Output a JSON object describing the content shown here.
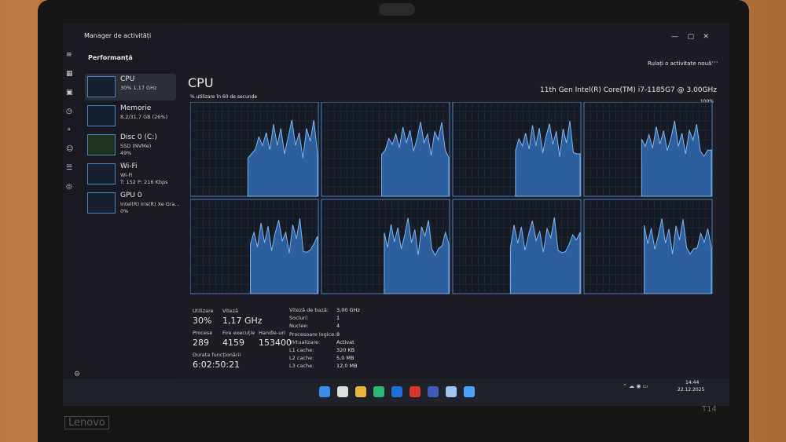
{
  "window": {
    "title": "Manager de activități"
  },
  "header": {
    "title": "Performanță",
    "run_task": "Rulați o activitate nouă"
  },
  "sidebar": [
    {
      "name": "CPU",
      "lines": [
        "30%  1,17 GHz"
      ]
    },
    {
      "name": "Memorie",
      "lines": [
        "8,2/31,7 GB (26%)"
      ]
    },
    {
      "name": "Disc 0 (C:)",
      "lines": [
        "SSD (NVMe)",
        "49%"
      ]
    },
    {
      "name": "Wi-Fi",
      "lines": [
        "Wi-Fi",
        "T: 152  P: 216 Kbps"
      ]
    },
    {
      "name": "GPU 0",
      "lines": [
        "Intel(R) Iris(R) Xe Gra...",
        "0%"
      ]
    }
  ],
  "cpu": {
    "title": "CPU",
    "model": "11th Gen Intel(R) Core(TM) i7-1185G7 @ 3.00GHz",
    "graph_label": "% utilizare în 60 de secunde",
    "graph_max": "100%"
  },
  "stats": [
    {
      "label": "Utilizare",
      "value": "30%"
    },
    {
      "label": "Viteză",
      "value": "1,17 GHz"
    },
    {
      "label": "Procese",
      "value": "289"
    },
    {
      "label": "Fire execuție",
      "value": "4159"
    },
    {
      "label": "Handle-uri",
      "value": "153400"
    },
    {
      "label": "Durata funcționării",
      "value": "6:02:50:21"
    }
  ],
  "details": [
    {
      "label": "Viteză de bază:",
      "value": "3,00 GHz"
    },
    {
      "label": "Socluri:",
      "value": "1"
    },
    {
      "label": "Nuclee:",
      "value": "4"
    },
    {
      "label": "Procesoare logice:",
      "value": "8"
    },
    {
      "label": "Virtualizare:",
      "value": "Activat"
    },
    {
      "label": "L1 cache:",
      "value": "320 KB"
    },
    {
      "label": "L2 cache:",
      "value": "5,0 MB"
    },
    {
      "label": "L3 cache:",
      "value": "12,0 MB"
    }
  ],
  "taskbar": {
    "time": "14:44",
    "date": "22.12.2025"
  },
  "laptop": {
    "brand": "Lenovo",
    "model": "T14"
  }
}
